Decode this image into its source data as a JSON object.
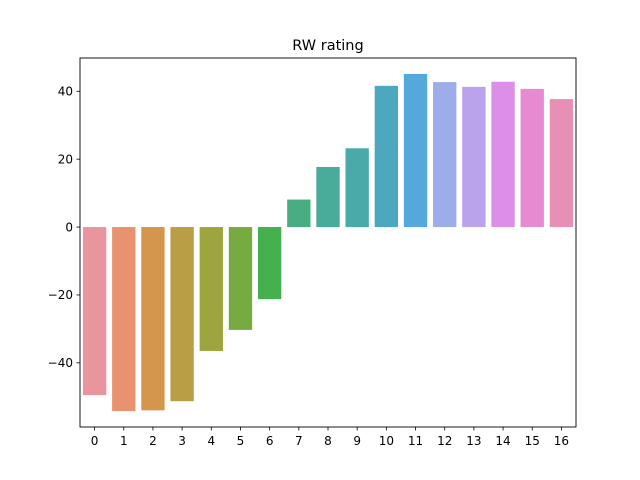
{
  "chart_data": {
    "type": "bar",
    "title": "RW rating",
    "xlabel": "",
    "ylabel": "",
    "categories": [
      "0",
      "1",
      "2",
      "3",
      "4",
      "5",
      "6",
      "7",
      "8",
      "9",
      "10",
      "11",
      "12",
      "13",
      "14",
      "15",
      "16"
    ],
    "values": [
      -49.5,
      -54.2,
      -54.0,
      -51.3,
      -36.5,
      -30.3,
      -21.2,
      8.1,
      17.7,
      23.2,
      41.6,
      45.1,
      42.7,
      41.3,
      42.8,
      40.7,
      37.7
    ],
    "colors": [
      "#e8959d",
      "#e8926f",
      "#d4964d",
      "#b99e46",
      "#9ca53e",
      "#77aa41",
      "#44b04e",
      "#48ad81",
      "#49ab99",
      "#4aa9a9",
      "#4ca8bf",
      "#55a8dc",
      "#9cadea",
      "#bba2ec",
      "#db8fe9",
      "#e68ad1",
      "#e78fb5"
    ],
    "ylim": [
      -58.9,
      49.8
    ],
    "yticks": [
      -40,
      -20,
      0,
      20,
      40
    ],
    "ytick_labels": [
      "−40",
      "−20",
      "0",
      "20",
      "40"
    ],
    "grid": false,
    "legend": "none"
  }
}
